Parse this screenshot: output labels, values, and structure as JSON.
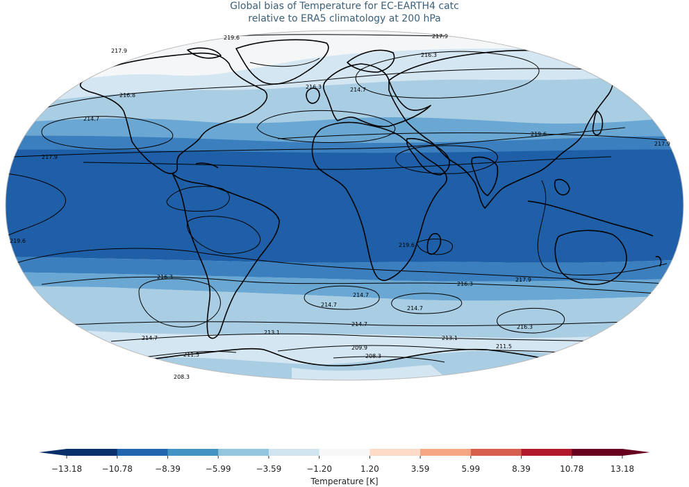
{
  "title": {
    "line1": "Global bias of Temperature for EC-EARTH4 catc",
    "line2": "relative to ERA5 climatology at 200 hPa"
  },
  "colorbar": {
    "label": "Temperature [K]",
    "ticks": [
      "−13.18",
      "−10.78",
      "−8.39",
      "−5.99",
      "−3.59",
      "−1.20",
      "1.20",
      "3.59",
      "5.99",
      "8.39",
      "10.78",
      "13.18"
    ],
    "colors": [
      "#08306b",
      "#2166ac",
      "#4393c3",
      "#92c5de",
      "#d1e5f0",
      "#f7f7f7",
      "#fddbc7",
      "#f4a582",
      "#d6604d",
      "#b2182b",
      "#67001f"
    ],
    "extend_low_color": "#08306b",
    "extend_high_color": "#67001f"
  },
  "map": {
    "projection": "Robinson",
    "band_colors": {
      "polar_north": "#f4f6f8",
      "lightest": "#d4e6f1",
      "light": "#a9cde3",
      "mid": "#6aa8d3",
      "dark_mid": "#3b7fbf",
      "darkest": "#1f5fa8"
    },
    "contour_labels": [
      "219.6",
      "217.9",
      "216.3",
      "217.9",
      "216.8",
      "214.7",
      "216.3",
      "214.7",
      "217.9",
      "219.6",
      "217.9",
      "219.6",
      "216.3",
      "214.7",
      "214.7",
      "214.7",
      "216.3",
      "216.3",
      "217.9",
      "219.6",
      "214.7",
      "214.7",
      "213.1",
      "213.1",
      "211.5",
      "209.9",
      "211.5",
      "208.3",
      "208.3"
    ]
  }
}
